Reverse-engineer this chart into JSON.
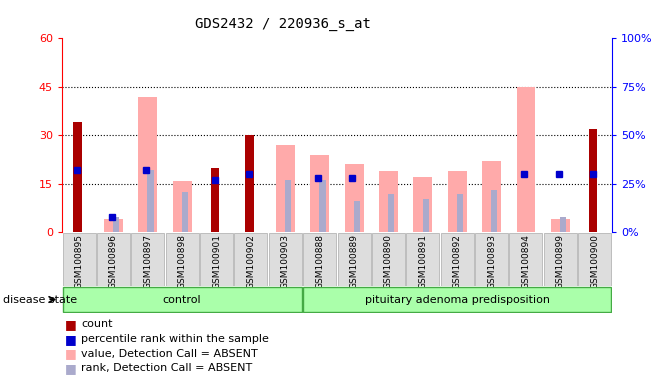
{
  "title": "GDS2432 / 220936_s_at",
  "samples": [
    "GSM100895",
    "GSM100896",
    "GSM100897",
    "GSM100898",
    "GSM100901",
    "GSM100902",
    "GSM100903",
    "GSM100888",
    "GSM100889",
    "GSM100890",
    "GSM100891",
    "GSM100892",
    "GSM100893",
    "GSM100894",
    "GSM100899",
    "GSM100900"
  ],
  "count": [
    34,
    0,
    0,
    0,
    20,
    30,
    0,
    0,
    0,
    0,
    0,
    0,
    0,
    0,
    0,
    32
  ],
  "percentile_rank": [
    32,
    8,
    32,
    0,
    27,
    30,
    0,
    28,
    28,
    0,
    0,
    0,
    0,
    30,
    30,
    30
  ],
  "value_absent": [
    0,
    4,
    42,
    16,
    0,
    0,
    27,
    24,
    21,
    19,
    17,
    19,
    22,
    45,
    4,
    0
  ],
  "rank_absent": [
    0,
    8,
    32,
    21,
    0,
    0,
    27,
    27,
    16,
    20,
    17,
    20,
    22,
    0,
    8,
    0
  ],
  "control_count": 7,
  "ylim_left": [
    0,
    60
  ],
  "ylim_right": [
    0,
    100
  ],
  "yticks_left": [
    0,
    15,
    30,
    45,
    60
  ],
  "yticks_right": [
    0,
    25,
    50,
    75,
    100
  ],
  "ytick_labels_right": [
    "0%",
    "25%",
    "50%",
    "75%",
    "100%"
  ],
  "color_count": "#aa0000",
  "color_rank": "#0000cc",
  "color_value_absent": "#ffaaaa",
  "color_rank_absent": "#aaaacc",
  "group_labels": [
    "control",
    "pituitary adenoma predisposition"
  ],
  "disease_state_label": "disease state",
  "legend_items": [
    "count",
    "percentile rank within the sample",
    "value, Detection Call = ABSENT",
    "rank, Detection Call = ABSENT"
  ],
  "legend_colors": [
    "#aa0000",
    "#0000cc",
    "#ffaaaa",
    "#aaaacc"
  ]
}
